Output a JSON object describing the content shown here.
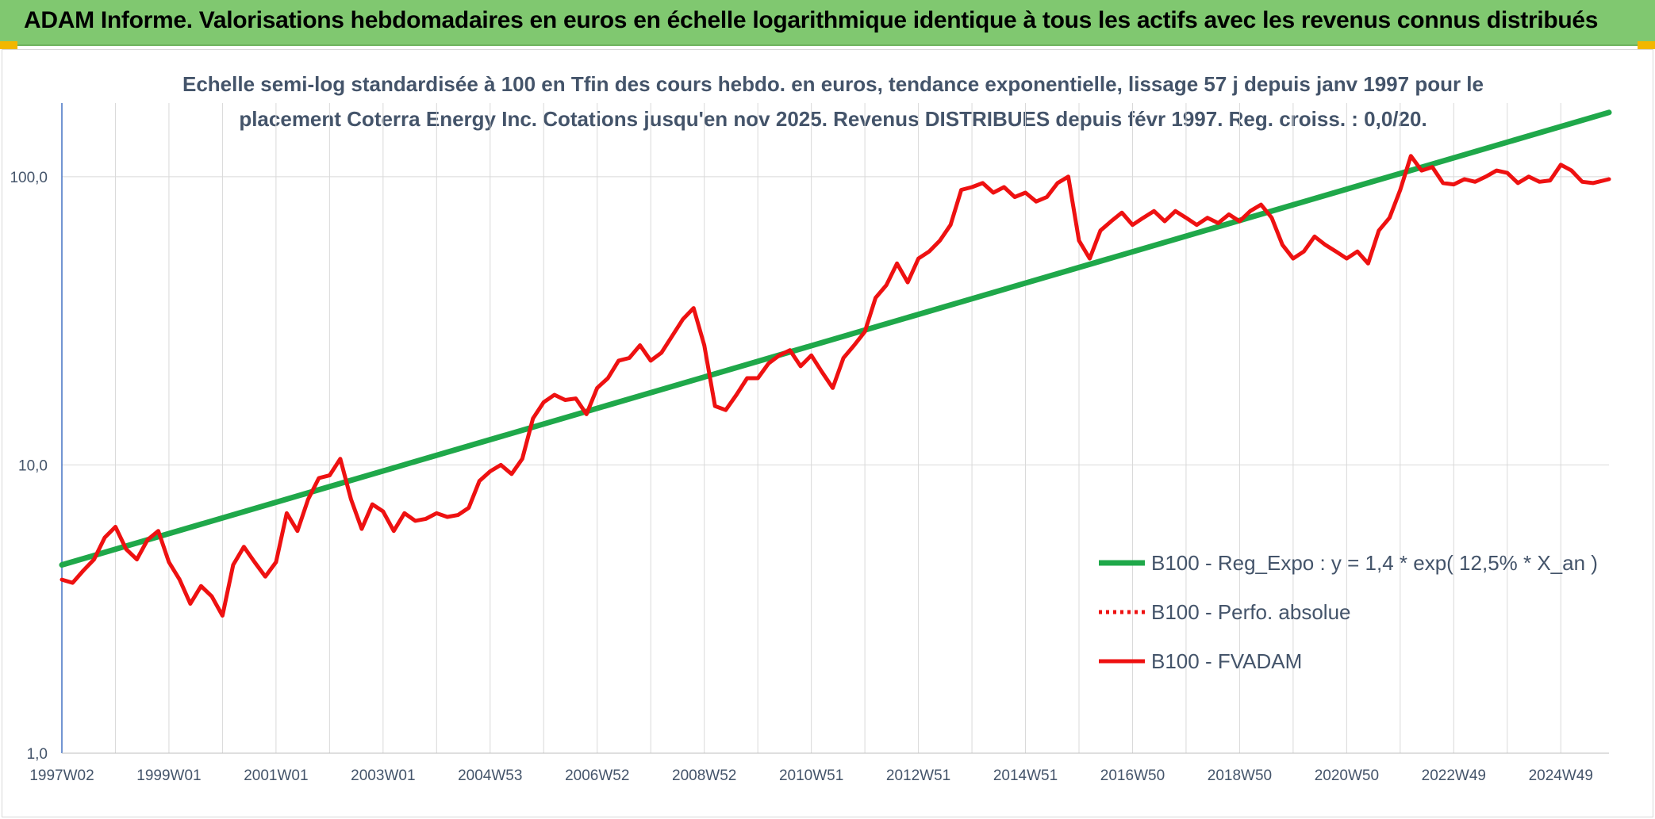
{
  "header": {
    "title": "ADAM Informe. Valorisations hebdomadaires en euros en échelle logarithmique identique à tous les actifs avec les revenus connus distribués"
  },
  "colors": {
    "header_bg": "#80c870",
    "accent_corner": "#f2b700",
    "regression": "#1fa84a",
    "fvadam": "#ee1111",
    "perfo_absolue": "#ee1111",
    "grid": "#d9d9d9",
    "text": "#44546a"
  },
  "chart_data": {
    "type": "line",
    "title_lines": [
      "Echelle semi-log standardisée à 100 en Tfin des cours hebdo. en euros, tendance exponentielle, lissage 57 j depuis janv 1997 pour le",
      "placement Coterra Energy Inc. Cotations jusqu'en nov 2025. Revenus DISTRIBUES depuis févr 1997. Reg. croiss. : 0,0/20."
    ],
    "y_scale": "log",
    "ylim": [
      1,
      180
    ],
    "y_ticks": [
      {
        "value": 1,
        "label": "1,0"
      },
      {
        "value": 10,
        "label": "10,0"
      },
      {
        "value": 100,
        "label": "100,0"
      }
    ],
    "x_range": [
      1997.0,
      2025.9
    ],
    "x_ticks": [
      {
        "value": 1997.0,
        "label": "1997W02"
      },
      {
        "value": 1999.0,
        "label": "1999W01"
      },
      {
        "value": 2001.0,
        "label": "2001W01"
      },
      {
        "value": 2003.0,
        "label": "2003W01"
      },
      {
        "value": 2005.0,
        "label": "2004W53"
      },
      {
        "value": 2007.0,
        "label": "2006W52"
      },
      {
        "value": 2009.0,
        "label": "2008W52"
      },
      {
        "value": 2011.0,
        "label": "2010W51"
      },
      {
        "value": 2013.0,
        "label": "2012W51"
      },
      {
        "value": 2015.0,
        "label": "2014W51"
      },
      {
        "value": 2017.0,
        "label": "2016W50"
      },
      {
        "value": 2019.0,
        "label": "2018W50"
      },
      {
        "value": 2021.0,
        "label": "2020W50"
      },
      {
        "value": 2023.0,
        "label": "2022W49"
      },
      {
        "value": 2025.0,
        "label": "2024W49"
      }
    ],
    "grid": true,
    "legend_position": "right-bottom",
    "series": [
      {
        "name": "B100 - Reg_Expo : y = 1,4 * exp( 12,5% *  X_an )",
        "style": "solid-thick",
        "color": "#1fa84a",
        "x": [
          1997.0,
          2025.9
        ],
        "values": [
          4.5,
          167
        ]
      },
      {
        "name": "B100 - Perfo. absolue",
        "style": "dotted",
        "color": "#ee1111",
        "x": [],
        "values": []
      },
      {
        "name": "B100 - FVADAM",
        "style": "solid",
        "color": "#ee1111",
        "x": [
          1997.0,
          1997.2,
          1997.4,
          1997.6,
          1997.8,
          1998.0,
          1998.2,
          1998.4,
          1998.6,
          1998.8,
          1999.0,
          1999.2,
          1999.4,
          1999.6,
          1999.8,
          2000.0,
          2000.2,
          2000.4,
          2000.6,
          2000.8,
          2001.0,
          2001.2,
          2001.4,
          2001.6,
          2001.8,
          2002.0,
          2002.2,
          2002.4,
          2002.6,
          2002.8,
          2003.0,
          2003.2,
          2003.4,
          2003.6,
          2003.8,
          2004.0,
          2004.2,
          2004.4,
          2004.6,
          2004.8,
          2005.0,
          2005.2,
          2005.4,
          2005.6,
          2005.8,
          2006.0,
          2006.2,
          2006.4,
          2006.6,
          2006.8,
          2007.0,
          2007.2,
          2007.4,
          2007.6,
          2007.8,
          2008.0,
          2008.2,
          2008.4,
          2008.6,
          2008.8,
          2009.0,
          2009.2,
          2009.4,
          2009.6,
          2009.8,
          2010.0,
          2010.2,
          2010.4,
          2010.6,
          2010.8,
          2011.0,
          2011.2,
          2011.4,
          2011.6,
          2011.8,
          2012.0,
          2012.2,
          2012.4,
          2012.6,
          2012.8,
          2013.0,
          2013.2,
          2013.4,
          2013.6,
          2013.8,
          2014.0,
          2014.2,
          2014.4,
          2014.6,
          2014.8,
          2015.0,
          2015.2,
          2015.4,
          2015.6,
          2015.8,
          2016.0,
          2016.2,
          2016.4,
          2016.6,
          2016.8,
          2017.0,
          2017.2,
          2017.4,
          2017.6,
          2017.8,
          2018.0,
          2018.2,
          2018.4,
          2018.6,
          2018.8,
          2019.0,
          2019.2,
          2019.4,
          2019.6,
          2019.8,
          2020.0,
          2020.2,
          2020.4,
          2020.6,
          2020.8,
          2021.0,
          2021.2,
          2021.4,
          2021.6,
          2021.8,
          2022.0,
          2022.2,
          2022.4,
          2022.6,
          2022.8,
          2023.0,
          2023.2,
          2023.4,
          2023.6,
          2023.8,
          2024.0,
          2024.2,
          2024.4,
          2024.6,
          2024.8,
          2025.0,
          2025.2,
          2025.4,
          2025.6,
          2025.9
        ],
        "values": [
          4.0,
          3.9,
          4.3,
          4.7,
          5.6,
          6.1,
          5.1,
          4.7,
          5.5,
          5.9,
          4.6,
          4.0,
          3.3,
          3.8,
          3.5,
          3.0,
          4.5,
          5.2,
          4.6,
          4.1,
          4.6,
          6.8,
          5.9,
          7.6,
          9.0,
          9.2,
          10.5,
          7.6,
          6.0,
          7.3,
          6.9,
          5.9,
          6.8,
          6.4,
          6.5,
          6.8,
          6.6,
          6.7,
          7.1,
          8.8,
          9.5,
          10.0,
          9.3,
          10.5,
          14.5,
          16.5,
          17.5,
          16.8,
          17.0,
          15.0,
          18.5,
          20.0,
          23.0,
          23.5,
          26.0,
          23.0,
          24.5,
          28.0,
          32.0,
          35.0,
          26.0,
          16.0,
          15.5,
          17.5,
          20.0,
          20.0,
          22.5,
          24.0,
          25.0,
          22.0,
          24.0,
          21.0,
          18.5,
          23.5,
          26.0,
          29.0,
          38.0,
          42.0,
          50.0,
          43.0,
          52.0,
          55.0,
          60.0,
          68.0,
          90.0,
          92.0,
          95.0,
          88.0,
          92.0,
          85.0,
          88.0,
          82.0,
          85.0,
          95.0,
          100.0,
          60.0,
          52.0,
          65.0,
          70.0,
          75.0,
          68.0,
          72.0,
          76.0,
          70.0,
          76.0,
          72.0,
          68.0,
          72.0,
          69.0,
          74.0,
          70.0,
          76.0,
          80.0,
          72.0,
          58.0,
          52.0,
          55.0,
          62.0,
          58.0,
          55.0,
          52.0,
          55.0,
          50.0,
          65.0,
          72.0,
          90.0,
          118.0,
          105.0,
          108.0,
          95.0,
          94.0,
          98.0,
          96.0,
          100.0,
          105.0,
          103.0,
          95.0,
          100.0,
          96.0,
          97.0,
          110.0,
          105.0,
          96.0,
          95.0,
          98.0
        ]
      }
    ]
  }
}
